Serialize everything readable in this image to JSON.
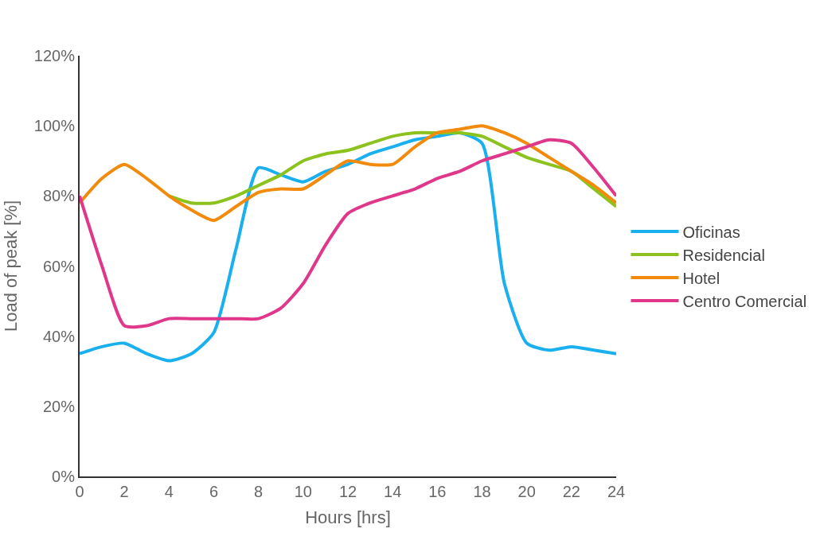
{
  "chart_data": {
    "type": "line",
    "xlabel": "Hours [hrs]",
    "ylabel": "Load of peak [%]",
    "x": [
      0,
      1,
      2,
      3,
      4,
      5,
      6,
      7,
      8,
      9,
      10,
      11,
      12,
      13,
      14,
      15,
      16,
      17,
      18,
      19,
      20,
      21,
      22,
      23,
      24
    ],
    "xlim": [
      0,
      24
    ],
    "xticks": [
      0,
      2,
      4,
      6,
      8,
      10,
      12,
      14,
      16,
      18,
      20,
      22,
      24
    ],
    "ylim": [
      0,
      120
    ],
    "yticks": [
      {
        "value": 0,
        "label": "0%"
      },
      {
        "value": 20,
        "label": "20%"
      },
      {
        "value": 40,
        "label": "40%"
      },
      {
        "value": 60,
        "label": "60%"
      },
      {
        "value": 80,
        "label": "80%"
      },
      {
        "value": 100,
        "label": "100%"
      },
      {
        "value": 120,
        "label": "120%"
      }
    ],
    "legend": "right",
    "marker": "none",
    "line_style": "solid",
    "series": [
      {
        "name": "Oficinas",
        "color": "#1ab0f0",
        "values": [
          35,
          37,
          38,
          35,
          33,
          35,
          41,
          65,
          88,
          86,
          84,
          87,
          89,
          92,
          94,
          96,
          97,
          98,
          95,
          55,
          38,
          36,
          37,
          36,
          35
        ]
      },
      {
        "name": "Residencial",
        "color": "#8cc21e",
        "values": [
          null,
          null,
          null,
          null,
          80,
          78,
          78,
          80,
          83,
          86,
          90,
          92,
          93,
          95,
          97,
          98,
          98,
          98,
          97,
          94,
          91,
          89,
          87,
          82,
          77
        ]
      },
      {
        "name": "Hotel",
        "color": "#f28a0c",
        "values": [
          78,
          85,
          89,
          85,
          80,
          76,
          73,
          77,
          81,
          82,
          82,
          86,
          90,
          89,
          89,
          94,
          98,
          99,
          100,
          98,
          95,
          91,
          87,
          83,
          78
        ]
      },
      {
        "name": "Centro Comercial",
        "color": "#e0378a",
        "values": [
          80,
          60,
          43,
          43,
          45,
          45,
          45,
          45,
          45,
          48,
          55,
          66,
          75,
          78,
          80,
          82,
          85,
          87,
          90,
          92,
          94,
          96,
          95,
          88,
          80
        ]
      }
    ]
  }
}
